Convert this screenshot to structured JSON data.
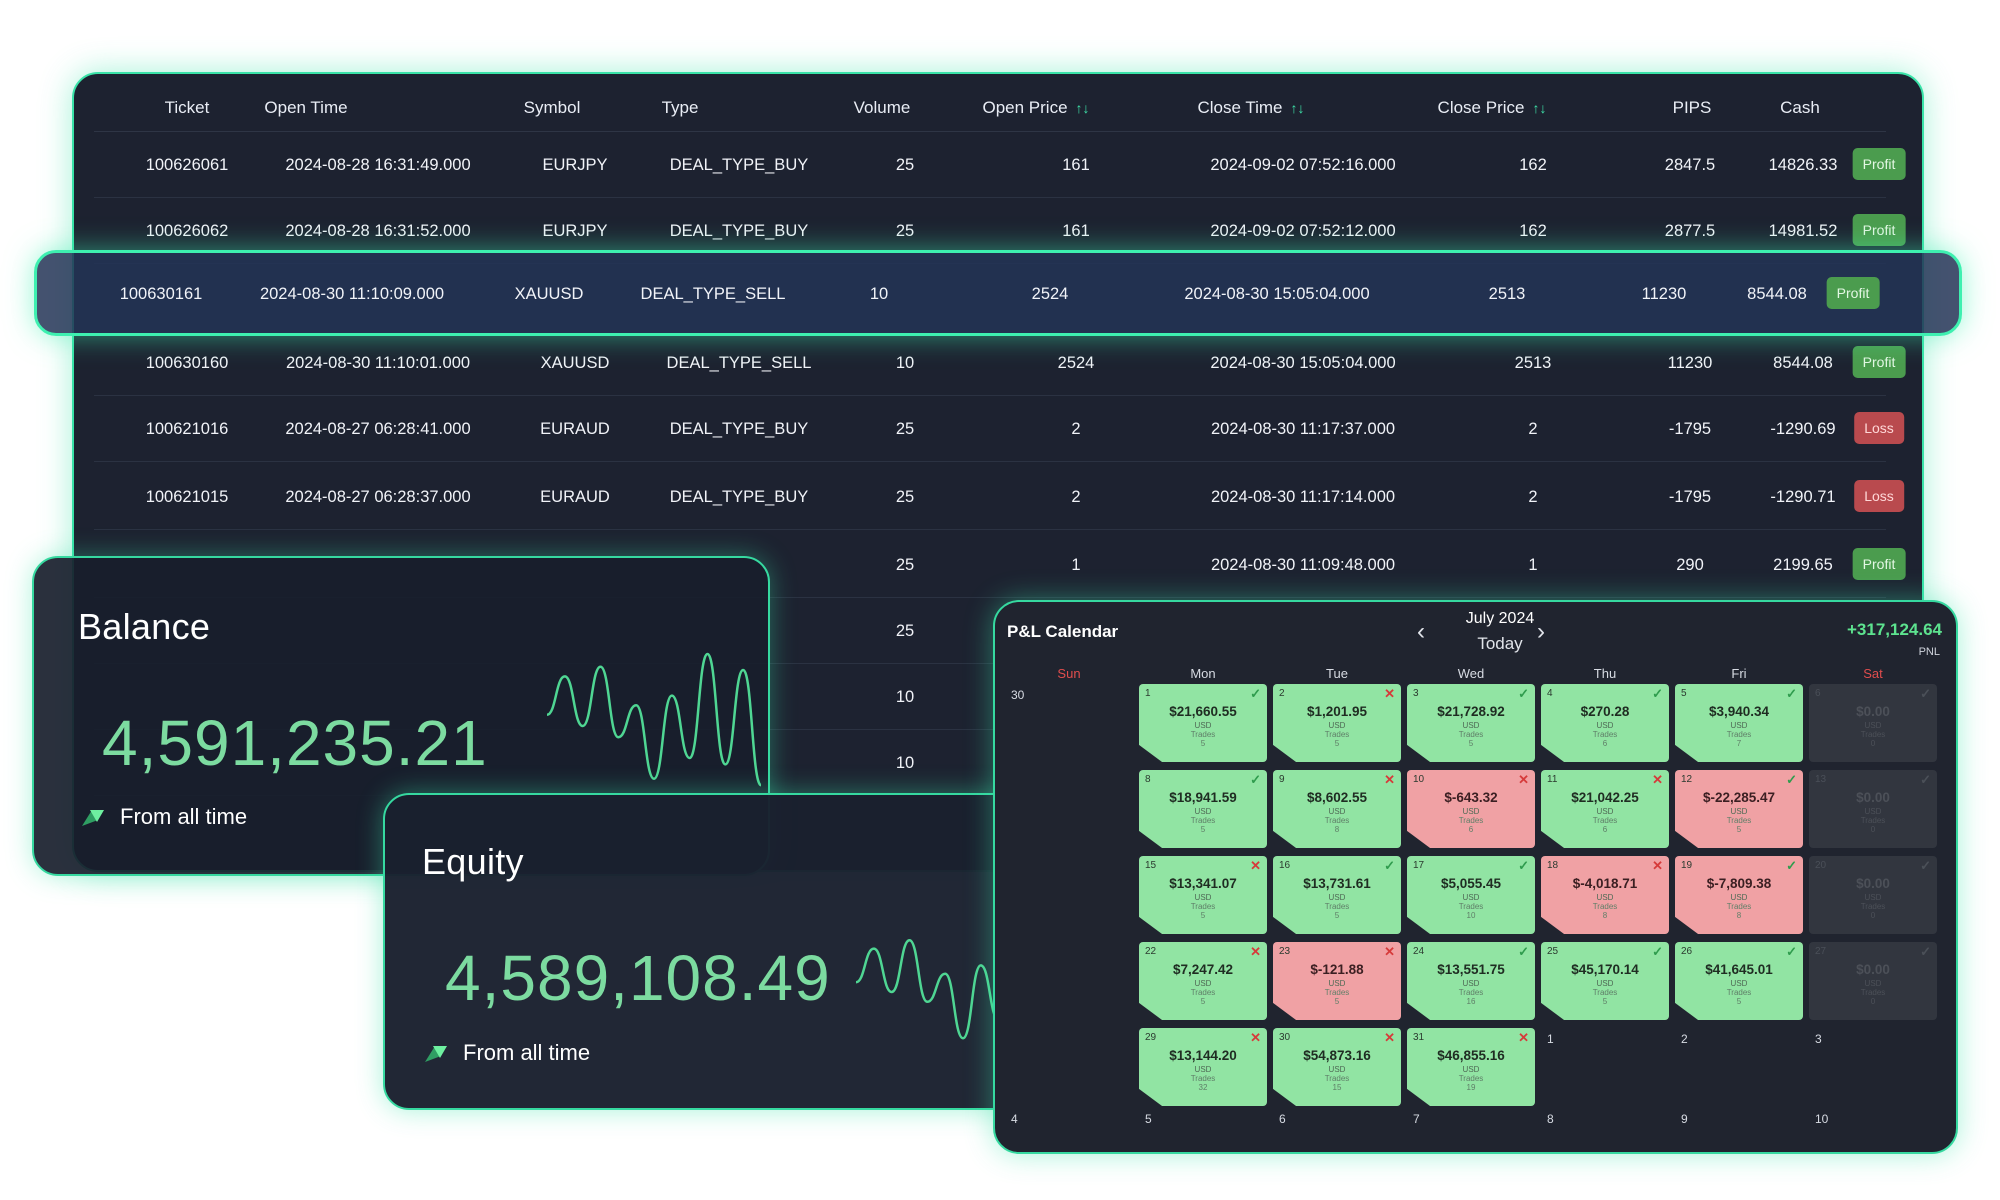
{
  "colors": {
    "accent": "#39e3a8",
    "panel": "#1d2230",
    "profit": "#4b9c4e",
    "loss": "#b94a4e",
    "value_green": "#7cdba0"
  },
  "table": {
    "headers": [
      "Ticket",
      "Open Time",
      "Symbol",
      "Type",
      "Volume",
      "Open Price",
      "Close Time",
      "Close Price",
      "PIPS",
      "Cash"
    ],
    "sort_icon": "↑↓",
    "rows": [
      {
        "ticket": "100626061",
        "open_time": "2024-08-28 16:31:49.000",
        "symbol": "EURJPY",
        "type": "DEAL_TYPE_BUY",
        "volume": "25",
        "open_price": "161",
        "close_time": "2024-09-02 07:52:16.000",
        "close_price": "162",
        "pips": "2847.5",
        "cash": "14826.33",
        "status": "Profit"
      },
      {
        "ticket": "100626062",
        "open_time": "2024-08-28 16:31:52.000",
        "symbol": "EURJPY",
        "type": "DEAL_TYPE_BUY",
        "volume": "25",
        "open_price": "161",
        "close_time": "2024-09-02 07:52:12.000",
        "close_price": "162",
        "pips": "2877.5",
        "cash": "14981.52",
        "status": "Profit"
      },
      {
        "ticket": "100630161",
        "open_time": "2024-08-30 11:10:09.000",
        "symbol": "XAUUSD",
        "type": "DEAL_TYPE_SELL",
        "volume": "10",
        "open_price": "2524",
        "close_time": "2024-08-30 15:05:04.000",
        "close_price": "2513",
        "pips": "11230",
        "cash": "8544.08",
        "status": "Profit"
      },
      {
        "ticket": "100630160",
        "open_time": "2024-08-30 11:10:01.000",
        "symbol": "XAUUSD",
        "type": "DEAL_TYPE_SELL",
        "volume": "10",
        "open_price": "2524",
        "close_time": "2024-08-30 15:05:04.000",
        "close_price": "2513",
        "pips": "11230",
        "cash": "8544.08",
        "status": "Profit"
      },
      {
        "ticket": "100621016",
        "open_time": "2024-08-27 06:28:41.000",
        "symbol": "EURAUD",
        "type": "DEAL_TYPE_BUY",
        "volume": "25",
        "open_price": "2",
        "close_time": "2024-08-30 11:17:37.000",
        "close_price": "2",
        "pips": "-1795",
        "cash": "-1290.69",
        "status": "Loss"
      },
      {
        "ticket": "100621015",
        "open_time": "2024-08-27 06:28:37.000",
        "symbol": "EURAUD",
        "type": "DEAL_TYPE_BUY",
        "volume": "25",
        "open_price": "2",
        "close_time": "2024-08-30 11:17:14.000",
        "close_price": "2",
        "pips": "-1795",
        "cash": "-1290.71",
        "status": "Loss"
      },
      {
        "ticket": "",
        "open_time": "",
        "symbol": "",
        "type": "",
        "volume": "25",
        "open_price": "1",
        "close_time": "2024-08-30 11:09:48.000",
        "close_price": "1",
        "pips": "290",
        "cash": "2199.65",
        "status": "Profit"
      },
      {
        "ticket": "",
        "open_time": "",
        "symbol": "",
        "type": "",
        "volume": "25",
        "open_price": "",
        "close_time": "",
        "close_price": "",
        "pips": "",
        "cash": "",
        "status": ""
      },
      {
        "ticket": "",
        "open_time": "",
        "symbol": "",
        "type": "",
        "volume": "10",
        "open_price": "",
        "close_time": "",
        "close_price": "",
        "pips": "",
        "cash": "",
        "status": ""
      },
      {
        "ticket": "",
        "open_time": "",
        "symbol": "",
        "type": "",
        "volume": "10",
        "open_price": "",
        "close_time": "",
        "close_price": "",
        "pips": "",
        "cash": "",
        "status": ""
      }
    ]
  },
  "balance": {
    "title": "Balance",
    "value": "4,591,235.21",
    "caption": "From all time"
  },
  "equity": {
    "title": "Equity",
    "value": "4,589,108.49",
    "caption": "From all time"
  },
  "sparkline": [
    0.62,
    0.86,
    0.55,
    0.92,
    0.48,
    0.68,
    0.22,
    0.74,
    0.35,
    1.0,
    0.31,
    0.9,
    0.18
  ],
  "calendar": {
    "title": "P&L Calendar",
    "month": "July 2024",
    "today": "Today",
    "pnl": "+317,124.64",
    "pnl_label": "PNL",
    "prev_icon": "‹",
    "next_icon": "›",
    "weekdays": [
      "Sun",
      "Mon",
      "Tue",
      "Wed",
      "Thu",
      "Fri",
      "Sat"
    ],
    "usd": "USD",
    "trades_label": "Trades",
    "weeks": [
      {
        "sun": "30",
        "days": [
          {
            "d": "1",
            "amount": "$21,660.55",
            "trades": "5",
            "state": "green",
            "mark": "ok"
          },
          {
            "d": "2",
            "amount": "$1,201.95",
            "trades": "5",
            "state": "green",
            "mark": "bad"
          },
          {
            "d": "3",
            "amount": "$21,728.92",
            "trades": "5",
            "state": "green",
            "mark": "ok"
          },
          {
            "d": "4",
            "amount": "$270.28",
            "trades": "6",
            "state": "green",
            "mark": "ok"
          },
          {
            "d": "5",
            "amount": "$3,940.34",
            "trades": "7",
            "state": "green",
            "mark": "ok"
          },
          {
            "d": "6",
            "amount": "$0.00",
            "trades": "0",
            "state": "grey",
            "mark": "grey"
          }
        ]
      },
      {
        "sun": "",
        "days": [
          {
            "d": "8",
            "amount": "$18,941.59",
            "trades": "5",
            "state": "green",
            "mark": "ok"
          },
          {
            "d": "9",
            "amount": "$8,602.55",
            "trades": "8",
            "state": "green",
            "mark": "bad"
          },
          {
            "d": "10",
            "amount": "$-643.32",
            "trades": "6",
            "state": "red",
            "mark": "bad"
          },
          {
            "d": "11",
            "amount": "$21,042.25",
            "trades": "6",
            "state": "green",
            "mark": "bad"
          },
          {
            "d": "12",
            "amount": "$-22,285.47",
            "trades": "5",
            "state": "red",
            "mark": "ok"
          },
          {
            "d": "13",
            "amount": "$0.00",
            "trades": "0",
            "state": "grey",
            "mark": "grey"
          }
        ]
      },
      {
        "sun": "",
        "days": [
          {
            "d": "15",
            "amount": "$13,341.07",
            "trades": "5",
            "state": "green",
            "mark": "bad"
          },
          {
            "d": "16",
            "amount": "$13,731.61",
            "trades": "5",
            "state": "green",
            "mark": "ok"
          },
          {
            "d": "17",
            "amount": "$5,055.45",
            "trades": "10",
            "state": "green",
            "mark": "ok"
          },
          {
            "d": "18",
            "amount": "$-4,018.71",
            "trades": "8",
            "state": "red",
            "mark": "bad"
          },
          {
            "d": "19",
            "amount": "$-7,809.38",
            "trades": "8",
            "state": "red",
            "mark": "ok"
          },
          {
            "d": "20",
            "amount": "$0.00",
            "trades": "0",
            "state": "grey",
            "mark": "grey"
          }
        ]
      },
      {
        "sun": "",
        "days": [
          {
            "d": "22",
            "amount": "$7,247.42",
            "trades": "5",
            "state": "green",
            "mark": "bad"
          },
          {
            "d": "23",
            "amount": "$-121.88",
            "trades": "5",
            "state": "red",
            "mark": "bad"
          },
          {
            "d": "24",
            "amount": "$13,551.75",
            "trades": "16",
            "state": "green",
            "mark": "ok"
          },
          {
            "d": "25",
            "amount": "$45,170.14",
            "trades": "5",
            "state": "green",
            "mark": "ok"
          },
          {
            "d": "26",
            "amount": "$41,645.01",
            "trades": "5",
            "state": "green",
            "mark": "ok"
          },
          {
            "d": "27",
            "amount": "$0.00",
            "trades": "0",
            "state": "grey",
            "mark": "grey"
          }
        ]
      },
      {
        "sun": "",
        "days": [
          {
            "d": "29",
            "amount": "$13,144.20",
            "trades": "32",
            "state": "green",
            "mark": "bad"
          },
          {
            "d": "30",
            "amount": "$54,873.16",
            "trades": "15",
            "state": "green",
            "mark": "bad"
          },
          {
            "d": "31",
            "amount": "$46,855.16",
            "trades": "19",
            "state": "green",
            "mark": "bad"
          }
        ]
      }
    ],
    "trailing": [
      "1",
      "2",
      "3"
    ],
    "next_week": [
      "4",
      "5",
      "6",
      "7",
      "8",
      "9",
      "10"
    ]
  }
}
